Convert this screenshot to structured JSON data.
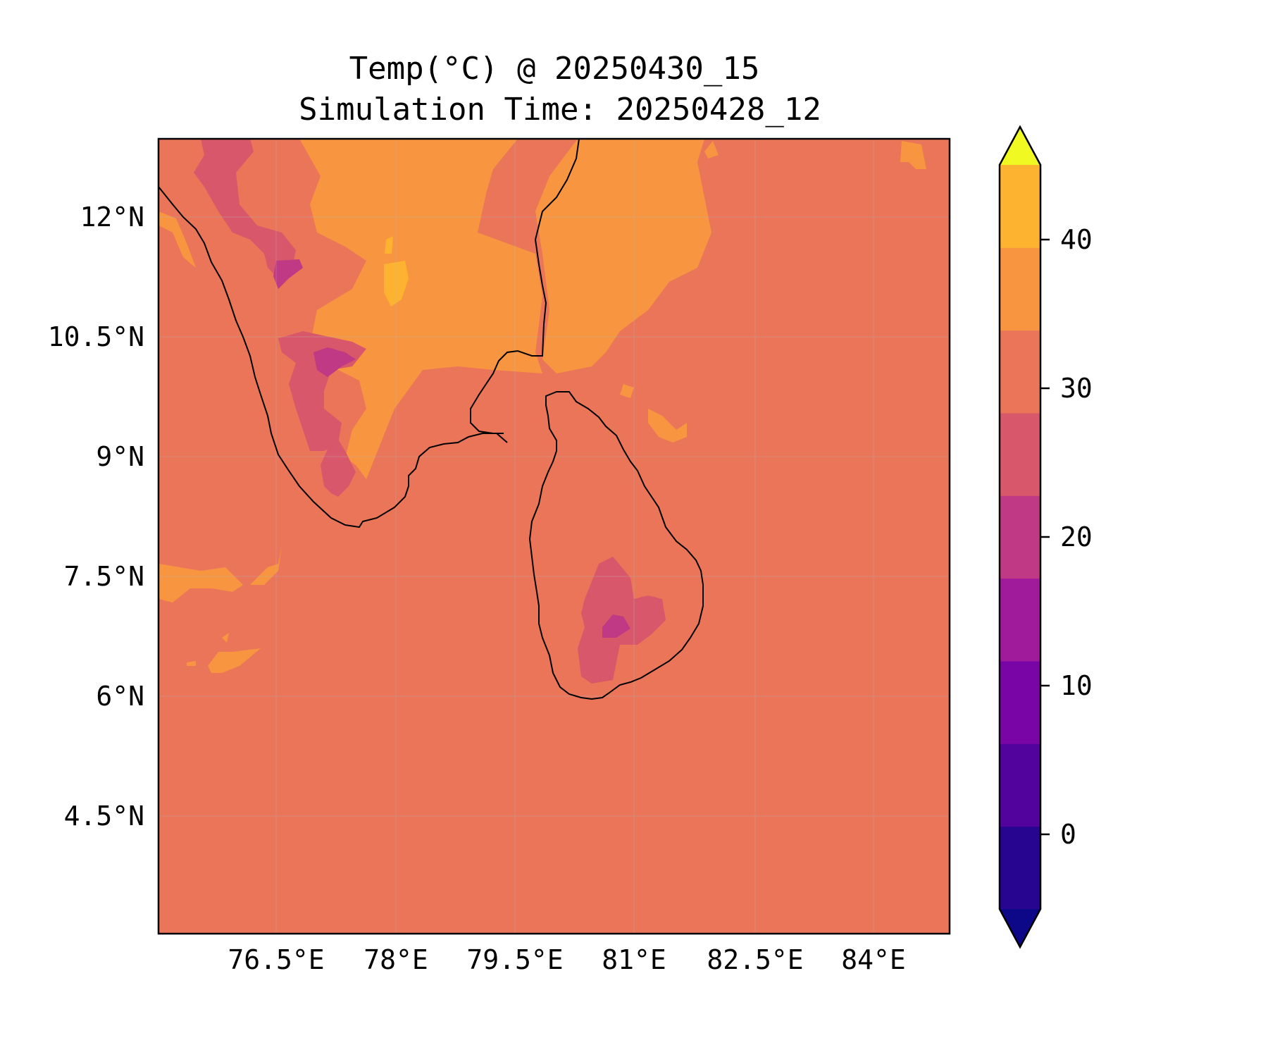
{
  "title": {
    "line1": "Temp(°C) @ 20250430_15",
    "line2": "Simulation Time: 20250428_12"
  },
  "map": {
    "lon_ticks": [
      "76.5°E",
      "78°E",
      "79.5°E",
      "81°E",
      "82.5°E",
      "84°E"
    ],
    "lat_ticks": [
      "12°N",
      "10.5°N",
      "9°N",
      "7.5°N",
      "6°N",
      "4.5°N"
    ],
    "background_fill": "#ea7559"
  },
  "colorbar": {
    "tick_labels": [
      "40",
      "30",
      "20",
      "10",
      "0"
    ],
    "colors_bottom_to_top": [
      "#0d0887",
      "#270591",
      "#52039e",
      "#7a05a6",
      "#a01a9c",
      "#bf3984",
      "#d8576b",
      "#ea7559",
      "#f89540",
      "#fdb32f",
      "#f0f921"
    ]
  }
}
